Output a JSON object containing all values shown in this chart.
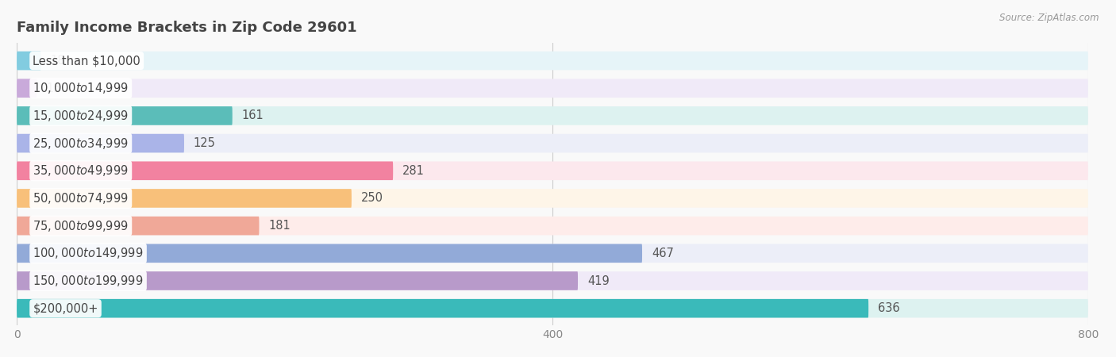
{
  "title": "Family Income Brackets in Zip Code 29601",
  "source": "Source: ZipAtlas.com",
  "categories": [
    "Less than $10,000",
    "$10,000 to $14,999",
    "$15,000 to $24,999",
    "$25,000 to $34,999",
    "$35,000 to $49,999",
    "$50,000 to $74,999",
    "$75,000 to $99,999",
    "$100,000 to $149,999",
    "$150,000 to $199,999",
    "$200,000+"
  ],
  "values": [
    18,
    15,
    161,
    125,
    281,
    250,
    181,
    467,
    419,
    636
  ],
  "bar_colors": [
    "#82cce0",
    "#c9aada",
    "#5bbdb9",
    "#aab4e8",
    "#f282a0",
    "#f8c07a",
    "#f0a898",
    "#92aad8",
    "#b89aca",
    "#3ababa"
  ],
  "bar_bg_colors": [
    "#e6f4f8",
    "#f0eaf8",
    "#ddf2f0",
    "#eceef8",
    "#fce8ed",
    "#fef5e8",
    "#feecea",
    "#eceef8",
    "#f0eaf8",
    "#ddf2f0"
  ],
  "xlim": [
    0,
    800
  ],
  "xticks": [
    0,
    400,
    800
  ],
  "title_fontsize": 13,
  "label_fontsize": 10.5,
  "value_fontsize": 10.5,
  "bg_color": "#f9f9f9",
  "title_color": "#444444",
  "value_color": "#555555",
  "label_color": "#444444",
  "grid_color": "#cccccc",
  "tick_color": "#888888"
}
